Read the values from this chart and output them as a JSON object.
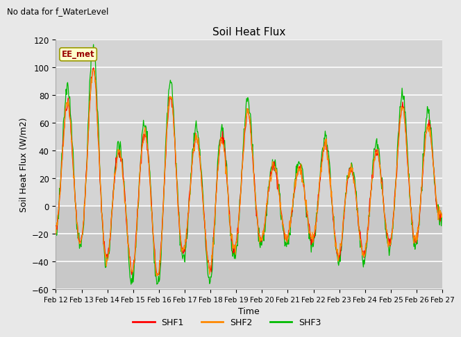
{
  "title": "Soil Heat Flux",
  "suptitle": "No data for f_WaterLevel",
  "ylabel": "Soil Heat Flux (W/m2)",
  "xlabel": "Time",
  "ylim": [
    -60,
    120
  ],
  "yticks": [
    -60,
    -40,
    -20,
    0,
    20,
    40,
    60,
    80,
    100,
    120
  ],
  "xtick_labels": [
    "Feb 12",
    "Feb 13",
    "Feb 14",
    "Feb 15",
    "Feb 16",
    "Feb 17",
    "Feb 18",
    "Feb 19",
    "Feb 20",
    "Feb 21",
    "Feb 22",
    "Feb 23",
    "Feb 24",
    "Feb 25",
    "Feb 26",
    "Feb 27"
  ],
  "legend_label": "EE_met",
  "shf1_color": "#ff0000",
  "shf2_color": "#ff8800",
  "shf3_color": "#00bb00",
  "series_names": [
    "SHF1",
    "SHF2",
    "SHF3"
  ],
  "bg_color": "#e8e8e8",
  "upper_band_color": "#d8d8d8",
  "grid_color": "#ffffff",
  "n_points": 720
}
